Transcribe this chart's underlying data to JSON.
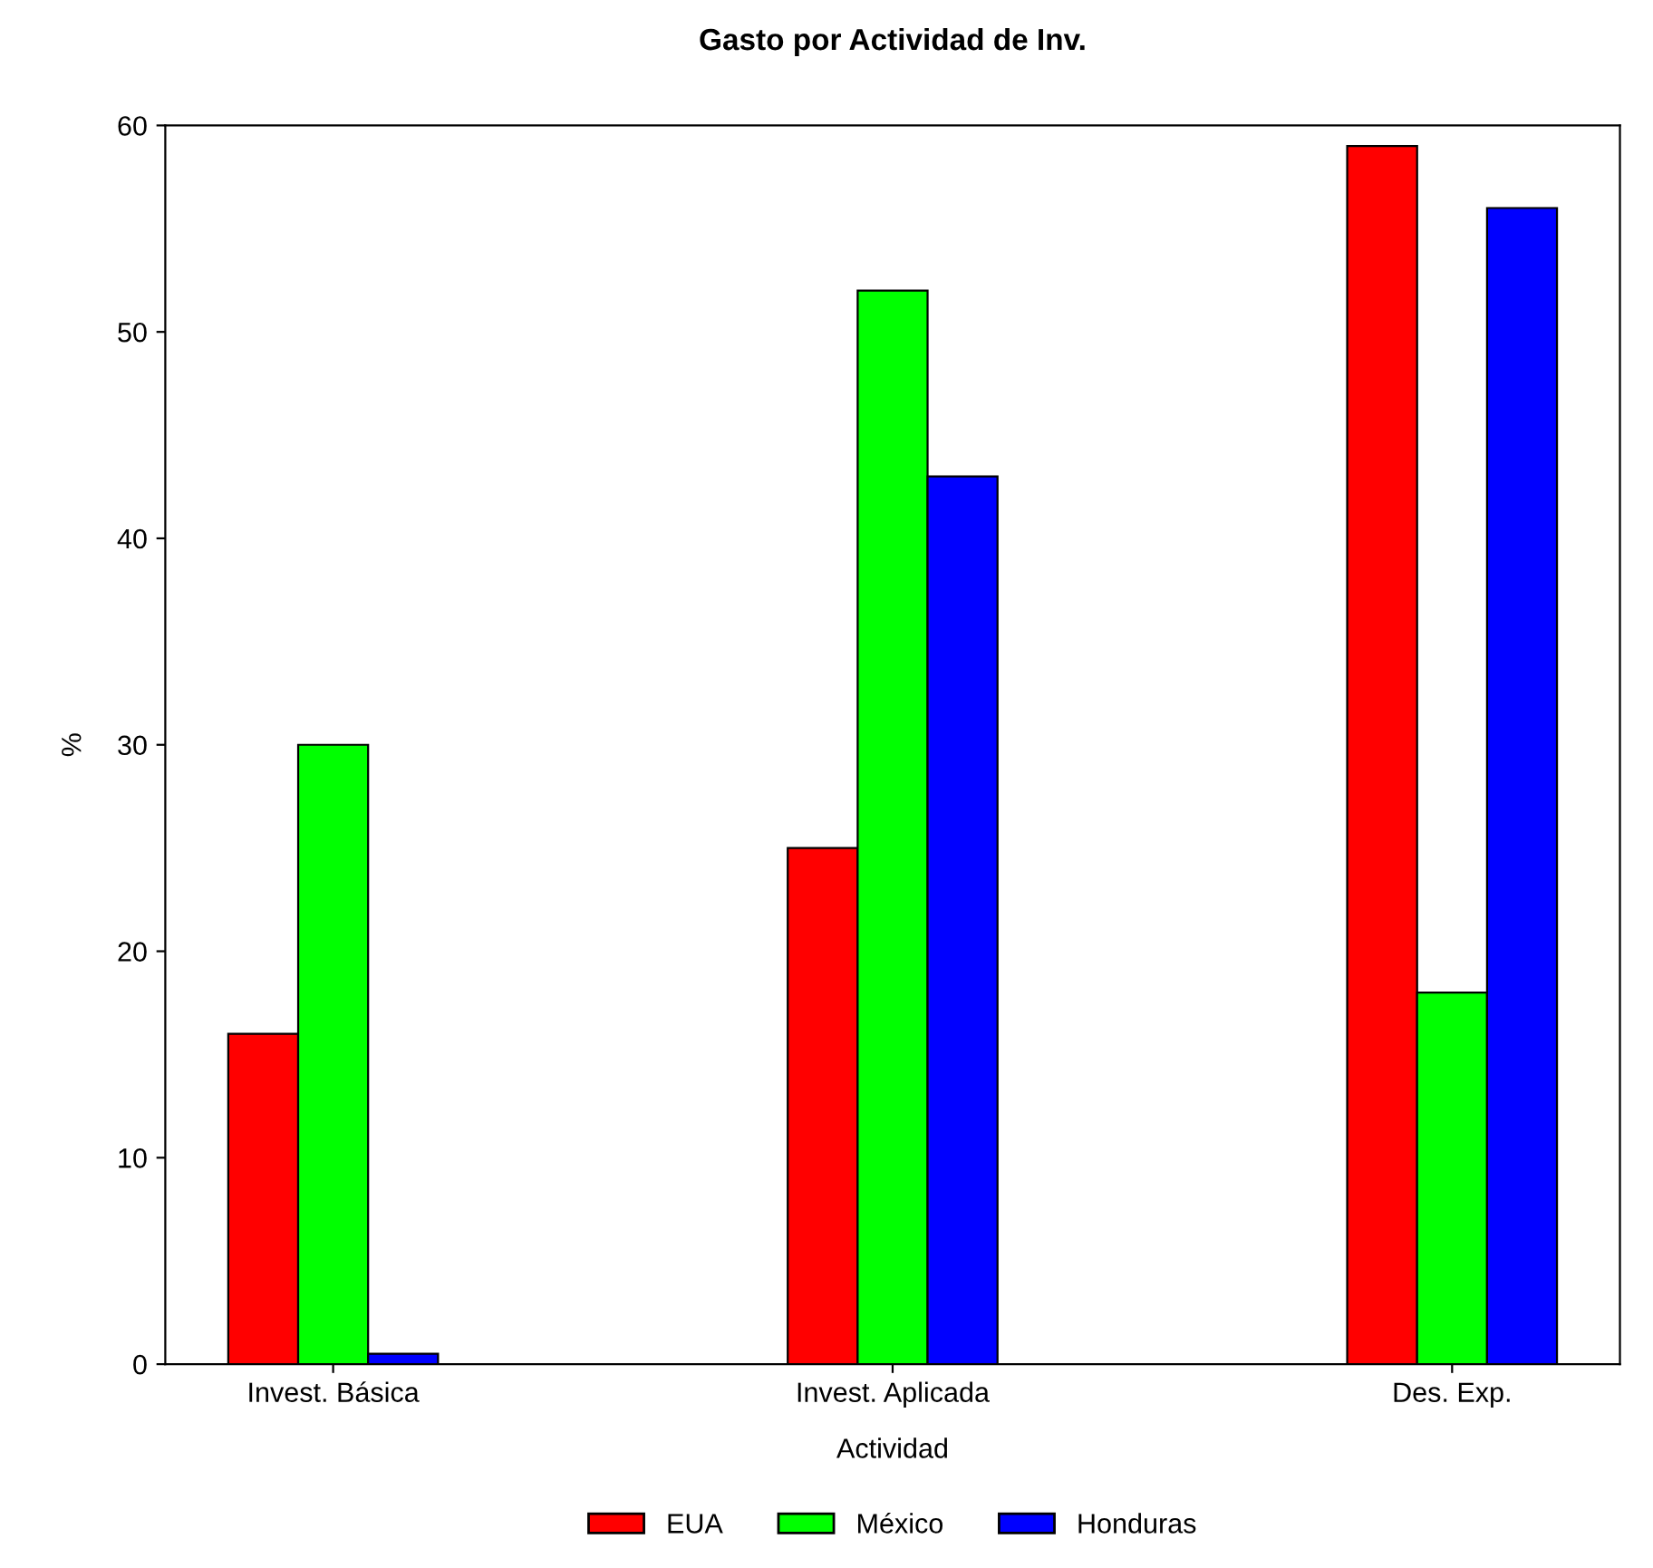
{
  "chart_data": {
    "type": "bar",
    "title": "Gasto por Actividad de Inv.",
    "xlabel": "Actividad",
    "ylabel": "%",
    "categories": [
      "Invest. Básica",
      "Invest. Aplicada",
      "Des. Exp."
    ],
    "series": [
      {
        "name": "EUA",
        "color": "#ff0000",
        "values": [
          16,
          25,
          59
        ]
      },
      {
        "name": "México",
        "color": "#00ff00",
        "values": [
          30,
          52,
          18
        ]
      },
      {
        "name": "Honduras",
        "color": "#0000ff",
        "values": [
          0.5,
          43,
          56
        ]
      }
    ],
    "ylim": [
      0,
      60
    ],
    "yticks": [
      0,
      10,
      20,
      30,
      40,
      50,
      60
    ],
    "grid": false,
    "legend": "bottom"
  }
}
